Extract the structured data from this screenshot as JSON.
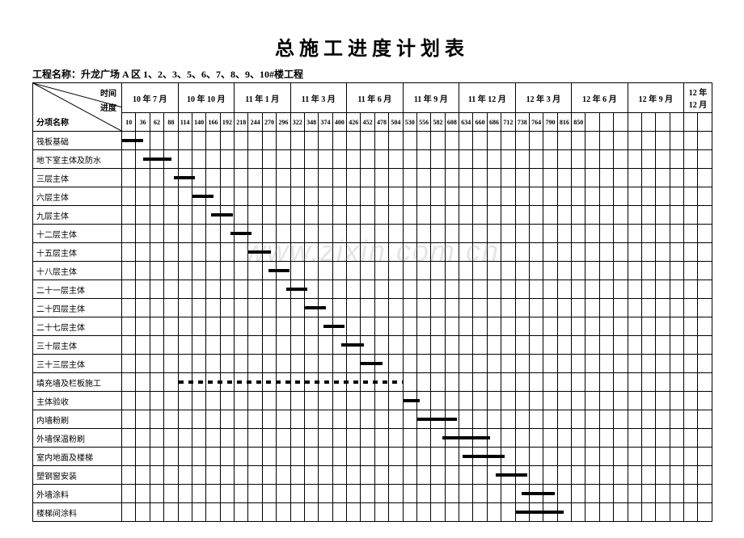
{
  "title": "总施工进度计划表",
  "subtitle": "工程名称：升龙广场 A 区 1、2、3、5、6、7、8、9、10#楼工程",
  "diag": {
    "top": "时间",
    "mid": "进度",
    "bot": "分项名称"
  },
  "watermark": "www.zixin.com.cn",
  "months": [
    {
      "label": "10 年 7 月",
      "span": 4
    },
    {
      "label": "10 年 10 月",
      "span": 4
    },
    {
      "label": "11 年 1 月",
      "span": 4
    },
    {
      "label": "11 年 3 月",
      "span": 4
    },
    {
      "label": "11 年 6 月",
      "span": 4
    },
    {
      "label": "11 年 9 月",
      "span": 4
    },
    {
      "label": "11 年 12 月",
      "span": 4
    },
    {
      "label": "12 年 3 月",
      "span": 4
    },
    {
      "label": "12 年 6 月",
      "span": 4
    },
    {
      "label": "12 年 9 月",
      "span": 4
    },
    {
      "label": "12 年 12 月",
      "span": 2
    }
  ],
  "cols": [
    "10",
    "36",
    "62",
    "88",
    "114",
    "140",
    "166",
    "192",
    "218",
    "244",
    "270",
    "296",
    "322",
    "348",
    "374",
    "400",
    "426",
    "452",
    "478",
    "504",
    "530",
    "556",
    "582",
    "608",
    "634",
    "660",
    "686",
    "712",
    "738",
    "764",
    "790",
    "816",
    "850",
    "",
    "",
    "",
    "",
    "",
    "",
    "",
    "",
    ""
  ],
  "rows": [
    {
      "name": "筏板基础",
      "start": 0,
      "end": 1.5,
      "dashed": false
    },
    {
      "name": "地下室主体及防水",
      "start": 1.5,
      "end": 3.5,
      "dashed": false
    },
    {
      "name": "三层主体",
      "start": 3.7,
      "end": 5.2,
      "dashed": false
    },
    {
      "name": "六层主体",
      "start": 5.0,
      "end": 6.5,
      "dashed": false
    },
    {
      "name": "九层主体",
      "start": 6.3,
      "end": 7.9,
      "dashed": false
    },
    {
      "name": "十二层主体",
      "start": 7.7,
      "end": 9.2,
      "dashed": false
    },
    {
      "name": "十五层主体",
      "start": 9.0,
      "end": 10.6,
      "dashed": false
    },
    {
      "name": "十八层主体",
      "start": 10.4,
      "end": 11.9,
      "dashed": false
    },
    {
      "name": "二十一层主体",
      "start": 11.7,
      "end": 13.2,
      "dashed": false
    },
    {
      "name": "二十四层主体",
      "start": 13.0,
      "end": 14.5,
      "dashed": false
    },
    {
      "name": "二十七层主体",
      "start": 14.3,
      "end": 15.8,
      "dashed": false
    },
    {
      "name": "三十层主体",
      "start": 15.6,
      "end": 17.2,
      "dashed": false
    },
    {
      "name": "三十三层主体",
      "start": 17.0,
      "end": 18.5,
      "dashed": false
    },
    {
      "name": "填充墙及栏板施工",
      "start": 4.0,
      "end": 20.0,
      "dashed": true
    },
    {
      "name": "主体验收",
      "start": 20.0,
      "end": 21.2,
      "dashed": false
    },
    {
      "name": "内墙粉刷",
      "start": 21.0,
      "end": 23.8,
      "dashed": false
    },
    {
      "name": "外墙保温粉刷",
      "start": 22.8,
      "end": 26.2,
      "dashed": false
    },
    {
      "name": "室内地面及楼梯",
      "start": 24.2,
      "end": 27.2,
      "dashed": false
    },
    {
      "name": "塑钢窗安装",
      "start": 26.6,
      "end": 28.8,
      "dashed": false
    },
    {
      "name": "外墙涂料",
      "start": 28.4,
      "end": 30.8,
      "dashed": false
    },
    {
      "name": "楼梯间涂料",
      "start": 28.0,
      "end": 31.4,
      "dashed": false
    }
  ],
  "totalCols": 42
}
